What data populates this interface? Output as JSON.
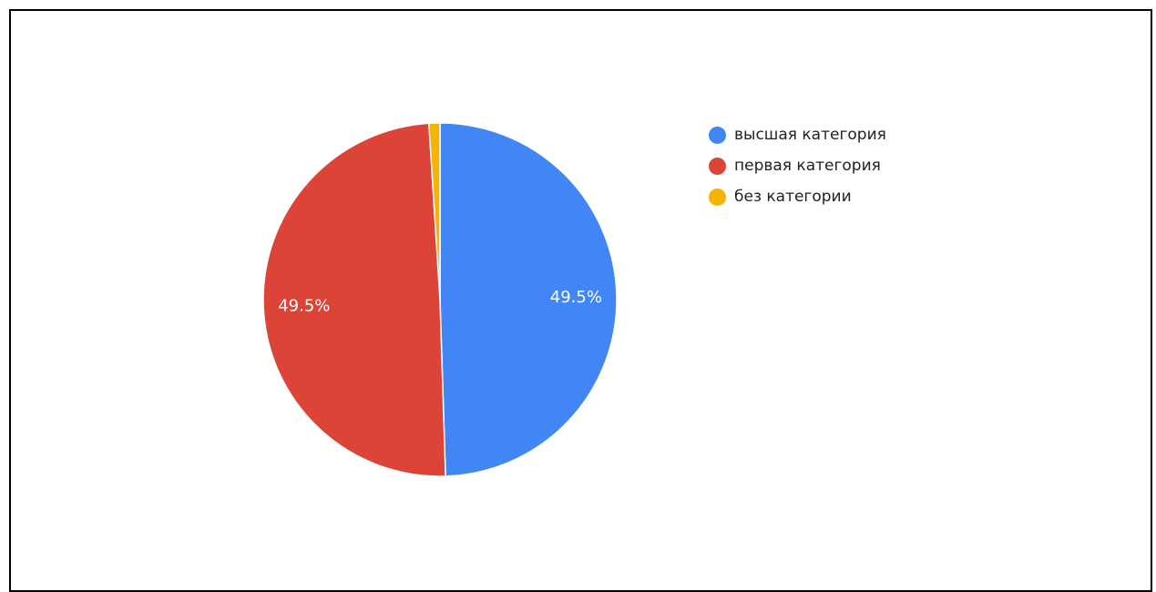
{
  "chart_data": {
    "type": "pie",
    "categories": [
      "высшая категория",
      "первая категория",
      "без категории"
    ],
    "values": [
      49.5,
      49.5,
      1.0
    ],
    "colors": [
      "#4285f4",
      "#db4437",
      "#f4b400"
    ],
    "data_labels": [
      "49.5%",
      "49.5%",
      ""
    ],
    "legend_position": "right",
    "start_angle_deg": 0,
    "direction": "clockwise"
  }
}
